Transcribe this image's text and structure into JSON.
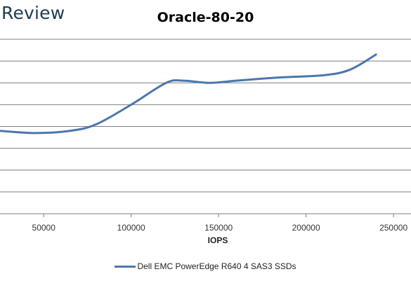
{
  "brand": "Review",
  "colors": {
    "series": "#4a77ad",
    "grid": "#7f7f7f"
  },
  "chart_data": {
    "type": "line",
    "title": "Oracle-80-20",
    "xlabel": "IOPS",
    "ylabel": "",
    "xlim": [
      25000,
      260000
    ],
    "ylim": [
      0,
      8
    ],
    "x_ticks": [
      50000,
      100000,
      150000,
      200000,
      250000
    ],
    "x_tick_labels": [
      "50000",
      "100000",
      "150000",
      "200000",
      "250000"
    ],
    "y_gridlines": [
      0,
      1,
      2,
      3,
      4,
      5,
      6,
      7,
      8
    ],
    "grid": true,
    "legend_position": "bottom",
    "series": [
      {
        "name": "Dell EMC PowerEdge R640 4 SAS3 SSDs",
        "x": [
          25000,
          45000,
          65000,
          80000,
          100000,
          120000,
          130000,
          145000,
          160000,
          185000,
          210000,
          225000,
          240000
        ],
        "y": [
          3.8,
          3.7,
          3.8,
          4.1,
          5.0,
          6.0,
          6.1,
          6.0,
          6.1,
          6.25,
          6.35,
          6.6,
          7.3
        ]
      }
    ]
  }
}
